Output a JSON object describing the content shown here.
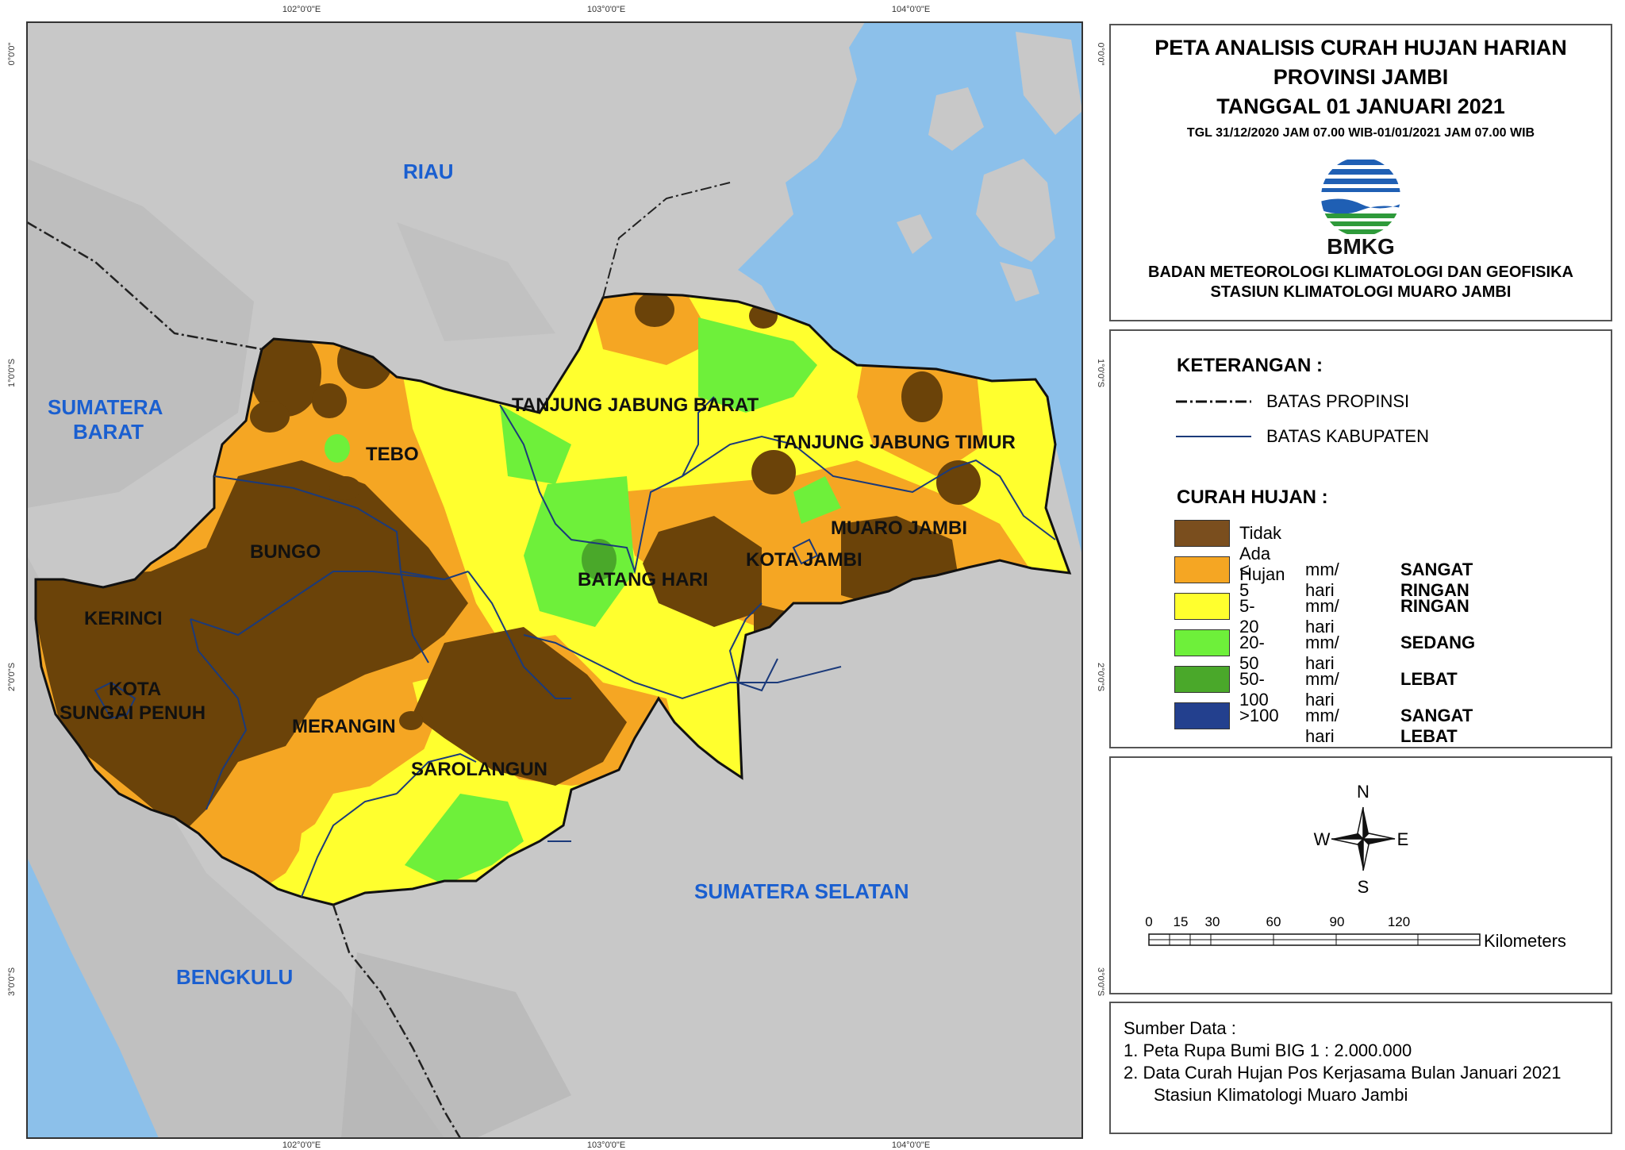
{
  "map": {
    "graticule": {
      "top": [
        "102°0'0\"E",
        "103°0'0\"E",
        "104°0'0\"E"
      ],
      "bottom": [
        "102°0'0\"E",
        "103°0'0\"E",
        "104°0'0\"E"
      ],
      "left": [
        "0°0'0\"",
        "1°0'0\"S",
        "2°0'0\"S",
        "3°0'0\"S"
      ],
      "right": [
        "0°0'0\"",
        "1°0'0\"S",
        "2°0'0\"S",
        "3°0'0\"S"
      ]
    },
    "regions": {
      "riau": "RIAU",
      "sumbar_1": "SUMATERA",
      "sumbar_2": "BARAT",
      "sumsel": "SUMATERA SELATAN",
      "bengkulu": "BENGKULU"
    },
    "kabupaten": {
      "tebo": "TEBO",
      "tjb": "TANJUNG JABUNG BARAT",
      "tjt": "TANJUNG JABUNG TIMUR",
      "bungo": "BUNGO",
      "batang_hari": "BATANG HARI",
      "kota_jambi": "KOTA JAMBI",
      "muaro_jambi": "MUARO JAMBI",
      "kerinci": "KERINCI",
      "ksp_1": "KOTA",
      "ksp_2": "SUNGAI PENUH",
      "merangin": "MERANGIN",
      "sarolangun": "SAROLANGUN"
    },
    "colors": {
      "sea": "#8cc0ea",
      "land": "#c8c8c8",
      "no_rain": "#6b4309",
      "very_light": "#f5a623",
      "light": "#ffff2e",
      "moderate": "#6ef03a",
      "heavy": "#4aa82a",
      "very_heavy": "#23408e",
      "label_blue": "#1a5fd0"
    }
  },
  "title": {
    "line1": "PETA ANALISIS CURAH HUJAN HARIAN",
    "line2": "PROVINSI JAMBI",
    "line3": "TANGGAL 01 JANUARI 2021",
    "period": "TGL 31/12/2020 JAM 07.00 WIB-01/01/2021 JAM 07.00 WIB",
    "logo_text": "BMKG",
    "org1": "BADAN METEOROLOGI KLIMATOLOGI DAN GEOFISIKA",
    "org2": "STASIUN KLIMATOLOGI MUARO JAMBI"
  },
  "legend": {
    "heading": "KETERANGAN :",
    "boundary_province": "BATAS PROPINSI",
    "boundary_regency": "BATAS KABUPATEN",
    "rain_heading": "CURAH HUJAN :",
    "classes": [
      {
        "label": "Tidak Ada Hujan",
        "unit": "",
        "name": "",
        "color": "#7a4e1e"
      },
      {
        "label": "< 5",
        "unit": "mm/ hari",
        "name": "SANGAT RINGAN",
        "color": "#f5a623"
      },
      {
        "label": "5-20",
        "unit": "mm/ hari",
        "name": "RINGAN",
        "color": "#ffff2e"
      },
      {
        "label": "20-50",
        "unit": "mm/ hari",
        "name": "SEDANG",
        "color": "#6ef03a"
      },
      {
        "label": "50-100",
        "unit": "mm/ hari",
        "name": "LEBAT",
        "color": "#4aa82a"
      },
      {
        "label": ">100",
        "unit": "mm/ hari",
        "name": "SANGAT LEBAT",
        "color": "#23408e"
      }
    ]
  },
  "compass": {
    "n": "N",
    "s": "S",
    "e": "E",
    "w": "W"
  },
  "scalebar": {
    "ticks": [
      "0",
      "15",
      "30",
      "60",
      "90",
      "120"
    ],
    "unit": "Kilometers"
  },
  "source": {
    "heading": "Sumber Data :",
    "item1": "1. Peta Rupa Bumi BIG 1 : 2.000.000",
    "item2": "2. Data Curah Hujan Pos Kerjasama Bulan Januari 2021",
    "item2b": "Stasiun Klimatologi Muaro Jambi"
  }
}
